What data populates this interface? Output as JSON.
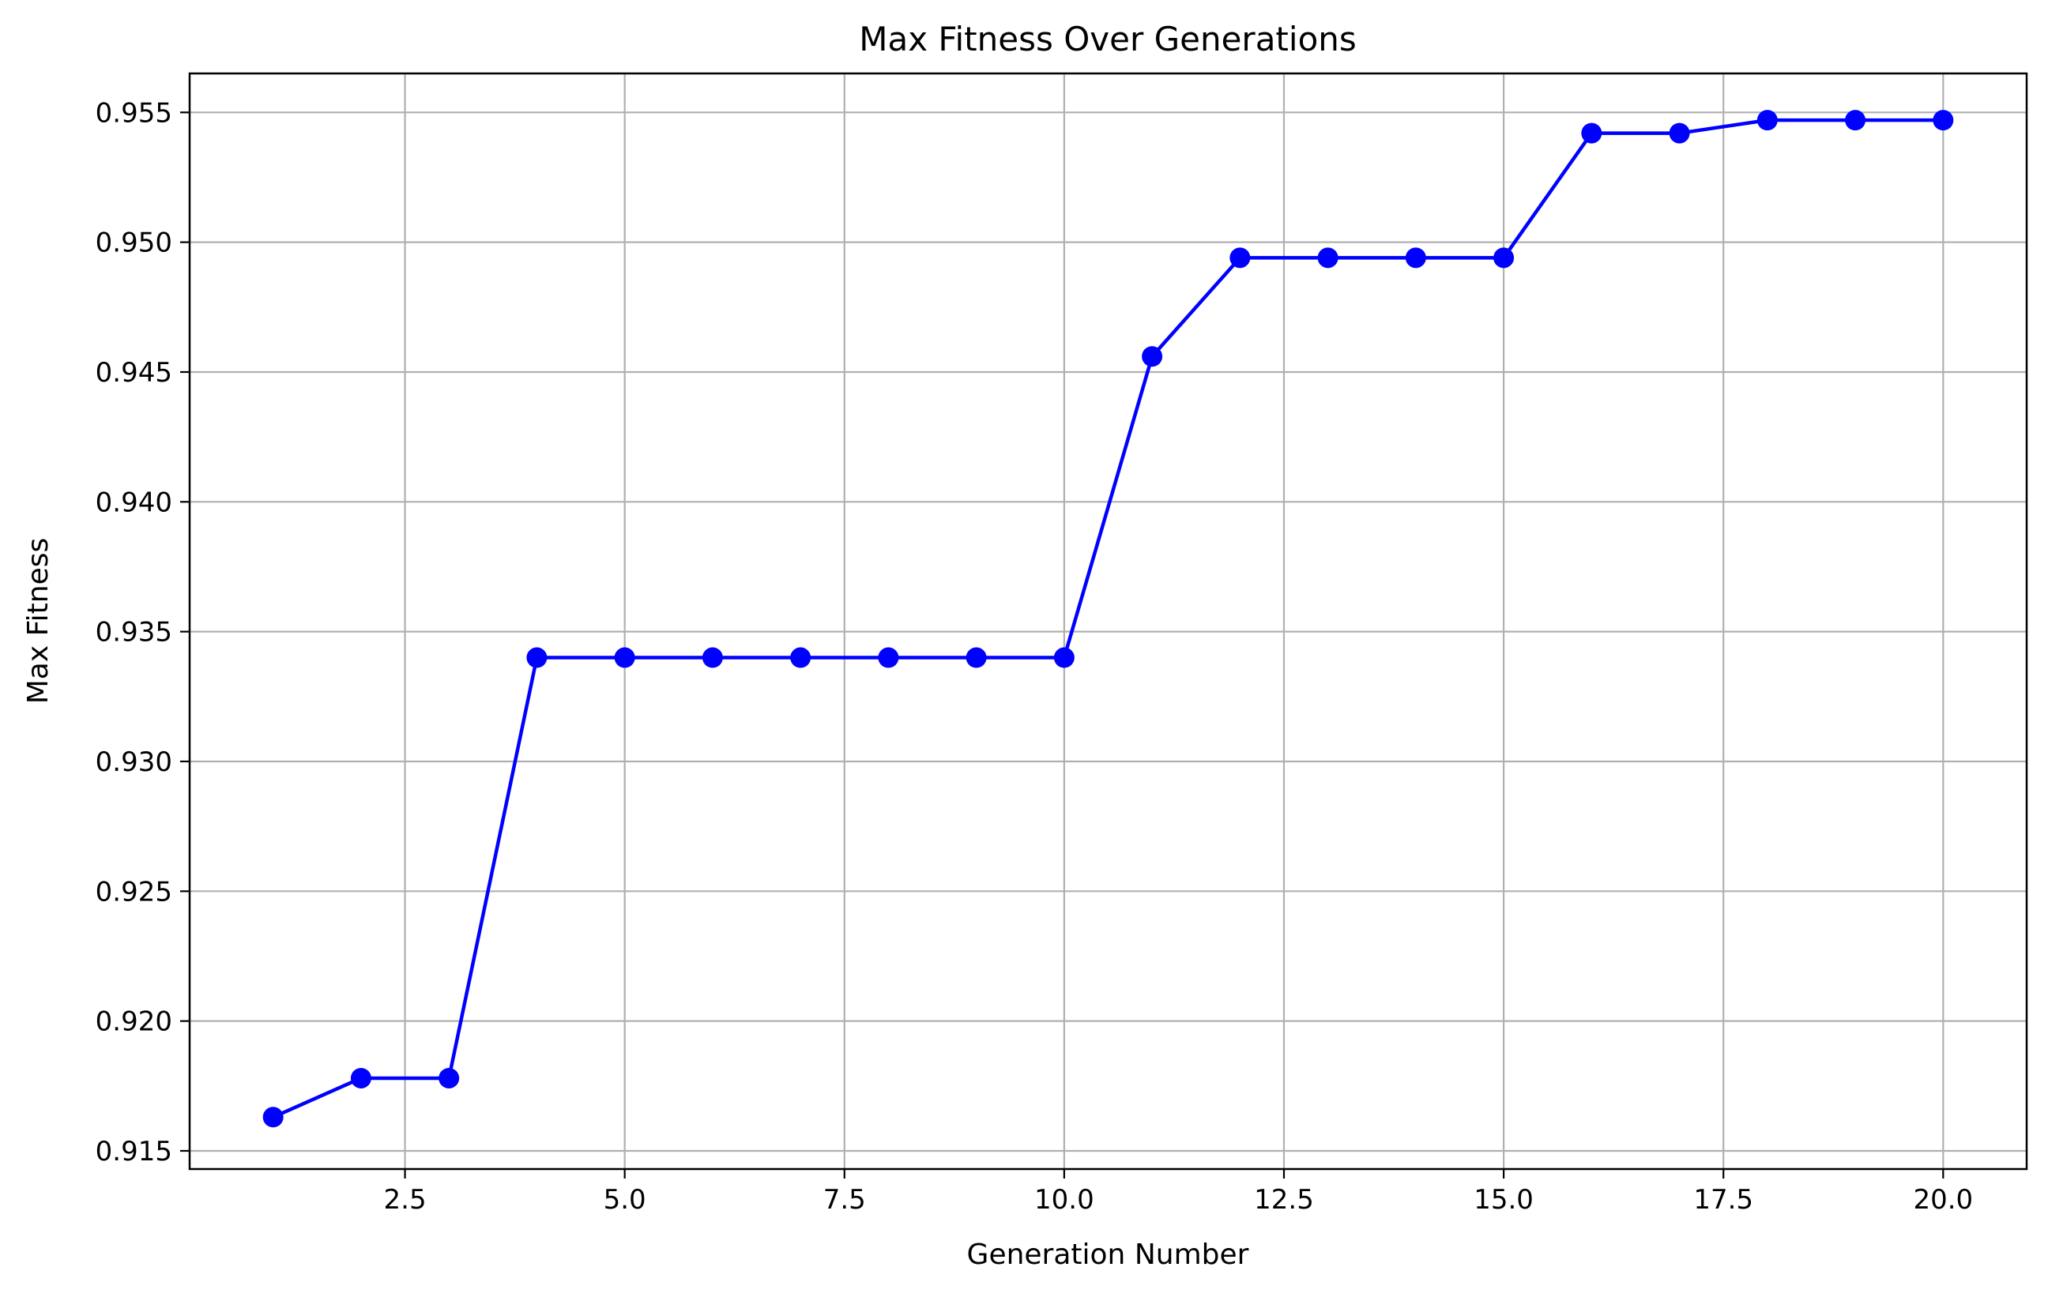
{
  "chart_data": {
    "type": "line",
    "title": "Max Fitness Over Generations",
    "xlabel": "Generation Number",
    "ylabel": "Max Fitness",
    "xlim": [
      0.05,
      20.95
    ],
    "ylim": [
      0.9143,
      0.9565
    ],
    "x_ticks": [
      2.5,
      5.0,
      7.5,
      10.0,
      12.5,
      15.0,
      17.5,
      20.0
    ],
    "x_tick_labels": [
      "2.5",
      "5.0",
      "7.5",
      "10.0",
      "12.5",
      "15.0",
      "17.5",
      "20.0"
    ],
    "y_ticks": [
      0.915,
      0.92,
      0.925,
      0.93,
      0.935,
      0.94,
      0.945,
      0.95,
      0.955
    ],
    "y_tick_labels": [
      "0.915",
      "0.920",
      "0.925",
      "0.930",
      "0.935",
      "0.940",
      "0.945",
      "0.950",
      "0.955"
    ],
    "grid": true,
    "legend": false,
    "series": [
      {
        "color": "#0000ff",
        "marker": "circle",
        "x": [
          1,
          2,
          3,
          4,
          5,
          6,
          7,
          8,
          9,
          10,
          11,
          12,
          13,
          14,
          15,
          16,
          17,
          18,
          19,
          20
        ],
        "y": [
          0.9163,
          0.9178,
          0.9178,
          0.934,
          0.934,
          0.934,
          0.934,
          0.934,
          0.934,
          0.934,
          0.9456,
          0.9494,
          0.9494,
          0.9494,
          0.9494,
          0.9542,
          0.9542,
          0.9547,
          0.9547,
          0.9547
        ]
      }
    ],
    "grid_color": "#b0b0b0",
    "axis_color": "#000000"
  }
}
